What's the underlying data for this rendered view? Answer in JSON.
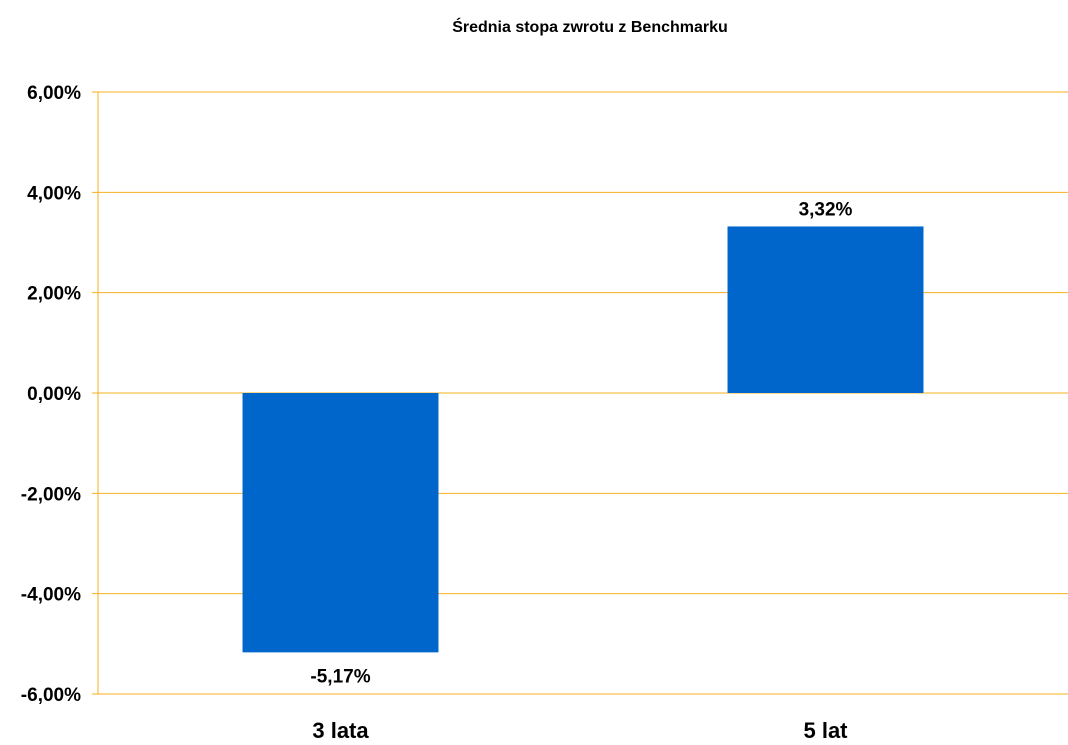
{
  "chart_data": {
    "type": "bar",
    "title": "Średnia stopa zwrotu z Benchmarku",
    "xlabel": "",
    "ylabel": "",
    "categories": [
      "3 lata",
      "5 lat"
    ],
    "values": [
      -5.17,
      3.32
    ],
    "data_labels": [
      "-5,17%",
      "3,32%"
    ],
    "ylim": [
      -6,
      6
    ],
    "y_ticks": [
      {
        "value": 6,
        "label": "6,00%"
      },
      {
        "value": 4,
        "label": "4,00%"
      },
      {
        "value": 2,
        "label": "2,00%"
      },
      {
        "value": 0,
        "label": "0,00%"
      },
      {
        "value": -2,
        "label": "-2,00%"
      },
      {
        "value": -4,
        "label": "-4,00%"
      },
      {
        "value": -6,
        "label": "-6,00%"
      }
    ],
    "grid": true,
    "legend": "none",
    "colors": {
      "bar": "#0066CC",
      "grid": "#F5B021",
      "axis": "#F5B021"
    }
  }
}
